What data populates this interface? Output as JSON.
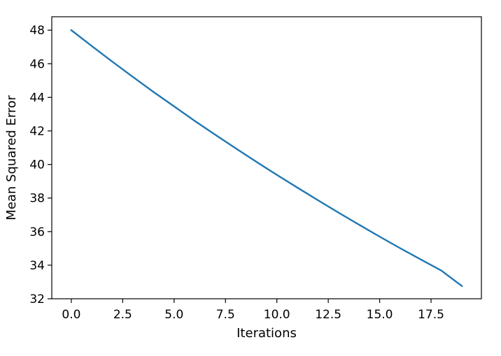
{
  "chart_data": {
    "type": "line",
    "title": "",
    "xlabel": "Iterations",
    "ylabel": "Mean Squared Error",
    "xlim": [
      -0.95,
      19.95
    ],
    "ylim": [
      32,
      48.8
    ],
    "grid": false,
    "legend": "none",
    "x_ticks": [
      0,
      2.5,
      5,
      7.5,
      10,
      12.5,
      15,
      17.5
    ],
    "x_tick_labels": [
      "0.0",
      "2.5",
      "5.0",
      "7.5",
      "10.0",
      "12.5",
      "15.0",
      "17.5"
    ],
    "y_ticks": [
      32,
      34,
      36,
      38,
      40,
      42,
      44,
      46,
      48
    ],
    "y_tick_labels": [
      "32",
      "34",
      "36",
      "38",
      "40",
      "42",
      "44",
      "46",
      "48"
    ],
    "series": [
      {
        "color": "#1f77b4",
        "x": [
          0,
          1,
          2,
          3,
          4,
          5,
          6,
          7,
          8,
          9,
          10,
          11,
          12,
          13,
          14,
          15,
          16,
          17,
          18,
          19
        ],
        "y": [
          48.0,
          47.05,
          46.12,
          45.21,
          44.32,
          43.46,
          42.6,
          41.77,
          40.96,
          40.16,
          39.38,
          38.62,
          37.87,
          37.13,
          36.41,
          35.7,
          35.01,
          34.34,
          33.68,
          32.76
        ]
      }
    ]
  }
}
